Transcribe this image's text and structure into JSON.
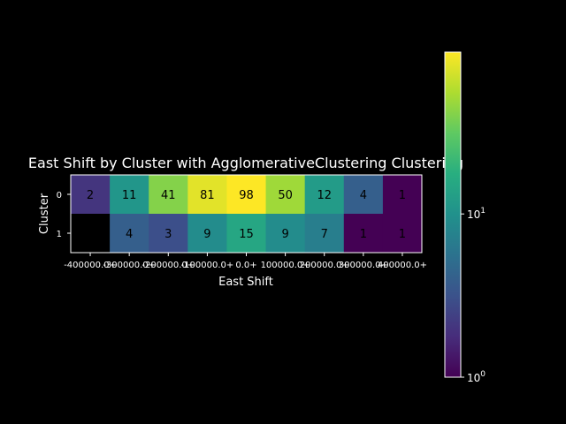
{
  "chart_data": {
    "type": "heatmap",
    "title": "East Shift by Cluster with AgglomerativeClustering Clustering",
    "xlabel": "East Shift",
    "ylabel": "Cluster",
    "x_categories": [
      "-400000.0+",
      "-300000.0+",
      "-200000.0+",
      "-100000.0+",
      "0.0+",
      "100000.0+",
      "200000.0+",
      "300000.0+",
      "400000.0+"
    ],
    "y_categories": [
      "0",
      "1"
    ],
    "values": [
      [
        2,
        11,
        41,
        81,
        98,
        50,
        12,
        4,
        1
      ],
      [
        null,
        4,
        3,
        9,
        15,
        9,
        7,
        1,
        1
      ]
    ],
    "colorscale": "viridis",
    "color_scale_type": "log",
    "colorbar_range": [
      1,
      98
    ],
    "colorbar_ticks": [
      {
        "base": "10",
        "exp": "0"
      },
      {
        "base": "10",
        "exp": "1"
      }
    ],
    "missing_color": "#000000"
  }
}
